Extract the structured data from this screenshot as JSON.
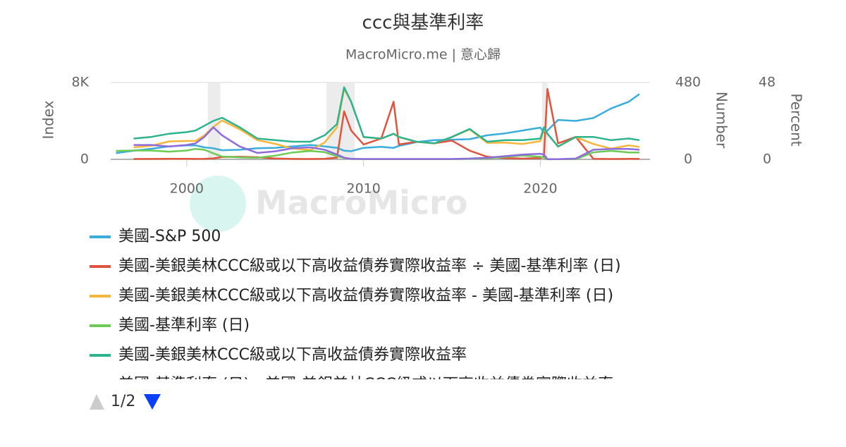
{
  "chart_data": {
    "type": "line",
    "title": "ccc與基準利率",
    "subtitle": "MacroMicro.me | 意心歸",
    "watermark": "MacroMicro",
    "y_label": "Index",
    "y2_label": "Number",
    "y3_label": "Percent",
    "xlim": [
      1995.7,
      2026.2
    ],
    "xticks": [
      2000,
      2010,
      2020
    ],
    "ylim": [
      0,
      8000
    ],
    "yticks": [
      0,
      {
        "value": 8000,
        "label": "8K"
      }
    ],
    "y2lim": [
      0,
      480
    ],
    "y2ticks": [
      0,
      480
    ],
    "y3lim": [
      0,
      48
    ],
    "y3ticks": [
      0,
      48
    ],
    "grid": true,
    "shaded_ranges": [
      [
        2001.2,
        2001.9
      ],
      [
        2007.9,
        2009.5
      ],
      [
        2020.1,
        2020.4
      ]
    ],
    "x": [
      1996,
      1997,
      1998,
      1999,
      2000,
      2000.5,
      2001,
      2001.5,
      2002,
      2003,
      2004,
      2005,
      2006,
      2007,
      2007.8,
      2008.5,
      2008.9,
      2009.3,
      2010,
      2011,
      2011.7,
      2012,
      2013,
      2014,
      2015,
      2016,
      2017,
      2018,
      2019,
      2020,
      2020.2,
      2020.4,
      2021,
      2022,
      2023,
      2024,
      2025,
      2025.6
    ],
    "series": [
      {
        "name": "美國-S&P 500",
        "color": "#3aaddb",
        "axis": "y",
        "values": [
          650,
          900,
          1100,
          1350,
          1450,
          1450,
          1250,
          1150,
          950,
          1000,
          1150,
          1200,
          1350,
          1500,
          1350,
          1200,
          900,
          850,
          1200,
          1300,
          1200,
          1400,
          1800,
          2000,
          2050,
          2100,
          2500,
          2700,
          3000,
          3300,
          2800,
          3000,
          4100,
          4000,
          4300,
          5300,
          6000,
          6800
        ]
      },
      {
        "name": "美國-美銀美林CCC級或以下高收益債券實際收益率 ÷ 美國-基準利率 (日)",
        "color": "#e0533c",
        "axis": "y2",
        "values": [
          null,
          2.4,
          2.5,
          3.3,
          3.1,
          2.8,
          3.5,
          6.3,
          14.9,
          16,
          13,
          5.2,
          2.6,
          2.1,
          3.3,
          11,
          300,
          180,
          93,
          130,
          360,
          93,
          110,
          100,
          117,
          54,
          16,
          8,
          5,
          8,
          18,
          440,
          100,
          140,
          3.2,
          2.3,
          3,
          2.8
        ]
      },
      {
        "name": "美國-美銀美林CCC級或以下高收益債券實際收益率 - 美國-基準利率 (日)",
        "color": "#f4b63b",
        "axis": "y3",
        "values": [
          null,
          7.5,
          8.5,
          11.2,
          11.5,
          11.5,
          15,
          20.2,
          24.25,
          18.75,
          12,
          9.7,
          6.7,
          5.75,
          10.5,
          20,
          44,
          35.8,
          13.85,
          12.9,
          15.9,
          13.85,
          10.9,
          9.9,
          13.88,
          18.65,
          10.3,
          10.5,
          9.6,
          11.4,
          18.9,
          15.95,
          7.92,
          13.9,
          9.6,
          6.7,
          8.7,
          7.7
        ]
      },
      {
        "name": "美國-基準利率 (日)",
        "color": "#6ccb55",
        "axis": "y3",
        "values": [
          5.3,
          5.5,
          5.5,
          4.8,
          5.5,
          6.5,
          6.0,
          3.8,
          1.75,
          1.25,
          1.0,
          2.3,
          4.3,
          5.25,
          4.5,
          2.0,
          1.0,
          0.2,
          0.15,
          0.1,
          0.1,
          0.15,
          0.1,
          0.1,
          0.12,
          0.35,
          0.7,
          1.5,
          2.4,
          1.6,
          1.1,
          0.05,
          0.08,
          0.1,
          4.4,
          5.3,
          4.3,
          4.3
        ]
      },
      {
        "name": "美國-美銀美林CCC級或以下高收益債券實際收益率",
        "color": "#2db38e",
        "axis": "y3",
        "values": [
          null,
          13,
          14,
          16,
          17,
          18,
          21,
          24,
          26,
          20,
          13,
          12,
          11,
          11,
          15,
          22,
          45,
          36,
          14,
          13,
          16,
          14,
          11,
          10,
          14,
          19,
          11,
          12,
          12,
          13,
          20,
          16,
          8,
          14,
          14,
          12,
          13,
          12
        ]
      },
      {
        "name": "美國-基準利率 (日) - 美國-美銀美林CCC級或以下高收益債券實際收益率",
        "color": "#8e6bdd",
        "axis": "y3",
        "values": [
          null,
          9,
          9,
          8,
          9,
          10,
          14,
          20,
          15,
          8,
          4,
          5,
          7,
          7.5,
          6,
          3,
          1,
          0.3,
          0.2,
          0.2,
          0.2,
          0.2,
          0.2,
          0.2,
          0.2,
          0.5,
          1,
          2,
          3,
          3.5,
          3,
          0.1,
          0.1,
          0.5,
          6,
          6.5,
          6.5,
          6
        ]
      }
    ],
    "legend_page": "1/2"
  }
}
